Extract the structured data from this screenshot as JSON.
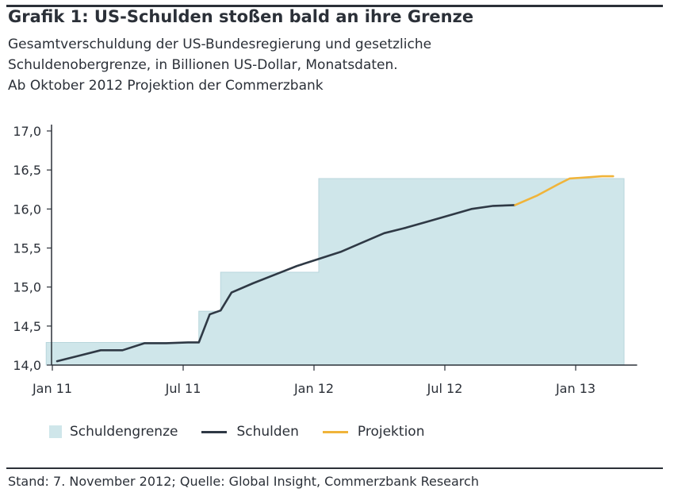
{
  "header": {
    "title": "Grafik 1: US-Schulden stoßen bald an ihre Grenze",
    "subtitle_lines": [
      "Gesamtverschuldung der US-Bundesregierung und gesetzliche",
      "Schuldenobergrenze, in Billionen US-Dollar, Monatsdaten.",
      "Ab Oktober 2012 Projektion der Commerzbank"
    ]
  },
  "footer": {
    "source": "Stand: 7. November 2012; Quelle: Global Insight, Commerzbank Research"
  },
  "legend": {
    "area_label": "Schuldengrenze",
    "line_label": "Schulden",
    "projection_label": "Projektion"
  },
  "colors": {
    "limit_fill": "#cfe6ea",
    "debt_line": "#2f3945",
    "projection_line": "#f0b43a",
    "text": "#2b3038"
  },
  "chart_data": {
    "type": "area",
    "title": "Grafik 1: US-Schulden stoßen bald an ihre Grenze",
    "xlabel": "",
    "ylabel": "",
    "x_tick_labels": [
      "Jan 11",
      "Jul 11",
      "Jan 12",
      "Jul 12",
      "Jan 13"
    ],
    "x_tick_months": [
      0,
      6,
      12,
      18,
      24
    ],
    "y_tick_labels": [
      "14,0",
      "14,5",
      "15,0",
      "15,5",
      "16,0",
      "16,5",
      "17,0"
    ],
    "ylim": [
      14.0,
      17.0
    ],
    "grid": false,
    "legend_position": "bottom",
    "series": [
      {
        "name": "Schuldengrenze",
        "kind": "step-area",
        "months": [
          -0.5,
          6.5,
          7.5,
          8.5,
          12,
          26
        ],
        "values": [
          14.29,
          14.69,
          15.19,
          15.19,
          16.39,
          16.39
        ]
      },
      {
        "name": "Schulden",
        "kind": "line",
        "months": [
          0,
          1,
          2,
          3,
          4,
          5,
          6,
          6.5,
          7,
          7.5,
          8,
          9,
          10,
          11,
          12,
          13,
          14,
          15,
          16,
          17,
          18,
          19,
          20,
          21
        ],
        "values": [
          14.05,
          14.12,
          14.19,
          14.19,
          14.28,
          14.28,
          14.29,
          14.29,
          14.65,
          14.7,
          14.93,
          15.05,
          15.16,
          15.27,
          15.36,
          15.45,
          15.57,
          15.69,
          15.76,
          15.84,
          15.92,
          16.0,
          16.04,
          16.05
        ]
      },
      {
        "name": "Projektion",
        "kind": "line",
        "months": [
          21,
          22,
          23,
          23.5,
          24,
          25,
          25.5
        ],
        "values": [
          16.05,
          16.17,
          16.32,
          16.39,
          16.4,
          16.42,
          16.42
        ]
      }
    ]
  }
}
